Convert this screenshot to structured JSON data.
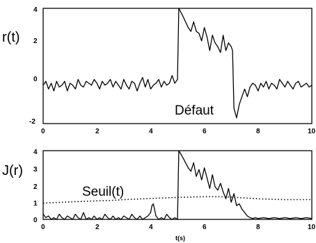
{
  "chart_data": [
    {
      "type": "line",
      "ylabel": "r(t)",
      "xlim": [
        0,
        10
      ],
      "ylim": [
        -2,
        4
      ],
      "x_ticks": [
        "0",
        "2",
        "4",
        "6",
        "8",
        "10"
      ],
      "y_ticks": [
        "-2",
        "0",
        "2",
        "4"
      ],
      "annotations": [
        "Défaut"
      ],
      "series": [
        {
          "style": "solid",
          "x": [
            0,
            0.1,
            0.2,
            0.3,
            0.4,
            0.5,
            0.6,
            0.7,
            0.8,
            0.9,
            1.0,
            1.1,
            1.2,
            1.3,
            1.4,
            1.5,
            1.6,
            1.7,
            1.8,
            1.9,
            2.0,
            2.1,
            2.2,
            2.3,
            2.4,
            2.5,
            2.6,
            2.7,
            2.8,
            2.9,
            3.0,
            3.1,
            3.2,
            3.3,
            3.4,
            3.5,
            3.6,
            3.7,
            3.8,
            3.9,
            4.0,
            4.1,
            4.2,
            4.3,
            4.4,
            4.5,
            4.6,
            4.7,
            4.8,
            4.9,
            5.0,
            5.05,
            5.2,
            5.4,
            5.5,
            5.6,
            5.7,
            5.8,
            5.9,
            6.0,
            6.1,
            6.2,
            6.3,
            6.4,
            6.5,
            6.6,
            6.7,
            6.8,
            6.9,
            7.0,
            7.05,
            7.1,
            7.2,
            7.3,
            7.4,
            7.5,
            7.6,
            7.7,
            7.8,
            7.9,
            8.0,
            8.1,
            8.2,
            8.3,
            8.4,
            8.5,
            8.6,
            8.7,
            8.8,
            8.9,
            9.0,
            9.1,
            9.2,
            9.3,
            9.4,
            9.5,
            9.6,
            9.7,
            9.8,
            9.9,
            10.0
          ],
          "y": [
            0.0,
            0.2,
            -0.2,
            0.1,
            -0.3,
            0.2,
            -0.1,
            0.0,
            0.2,
            -0.3,
            0.1,
            0.0,
            -0.2,
            0.3,
            0.0,
            -0.1,
            0.2,
            0.1,
            0.0,
            0.3,
            0.1,
            -0.2,
            0.2,
            0.0,
            0.1,
            0.3,
            -0.1,
            0.2,
            0.0,
            -0.2,
            0.3,
            0.0,
            -0.2,
            0.2,
            0.1,
            -0.3,
            0.1,
            0.4,
            -0.1,
            0.3,
            -0.2,
            0.0,
            0.1,
            0.3,
            -0.1,
            0.2,
            0.0,
            0.1,
            0.5,
            0.1,
            0.3,
            4.0,
            3.6,
            3.0,
            2.8,
            3.3,
            2.8,
            2.7,
            2.3,
            3.0,
            2.5,
            1.8,
            2.6,
            2.2,
            2.0,
            1.7,
            2.6,
            1.8,
            2.2,
            2.0,
            1.8,
            -1.2,
            -1.7,
            -1.0,
            -0.6,
            -0.2,
            -0.6,
            -0.1,
            0.1,
            0.0,
            -0.3,
            0.1,
            -0.1,
            0.2,
            -0.2,
            0.1,
            0.0,
            -0.2,
            0.3,
            0.1,
            -0.1,
            0.2,
            0.0,
            -0.2,
            0.1,
            0.2,
            -0.1,
            0.0,
            0.1,
            -0.1,
            0.0
          ]
        }
      ]
    },
    {
      "type": "line",
      "ylabel": "J(r)",
      "xlabel": "t(s)",
      "xlim": [
        0,
        10
      ],
      "ylim": [
        0,
        4
      ],
      "x_ticks": [
        "0",
        "2",
        "4",
        "6",
        "8",
        "10"
      ],
      "y_ticks": [
        "0",
        "1",
        "2",
        "3",
        "4"
      ],
      "annotations": [
        "Seuil(t)"
      ],
      "series": [
        {
          "style": "solid",
          "x": [
            0,
            0.1,
            0.2,
            0.3,
            0.4,
            0.5,
            0.6,
            0.7,
            0.8,
            0.9,
            1.0,
            1.1,
            1.2,
            1.3,
            1.4,
            1.5,
            1.6,
            1.7,
            1.8,
            1.9,
            2.0,
            2.1,
            2.2,
            2.3,
            2.4,
            2.5,
            2.6,
            2.7,
            2.8,
            2.9,
            3.0,
            3.1,
            3.2,
            3.3,
            3.4,
            3.5,
            3.6,
            3.7,
            3.8,
            3.9,
            4.0,
            4.05,
            4.1,
            4.2,
            4.3,
            4.4,
            4.5,
            4.6,
            4.7,
            4.8,
            4.9,
            5.0,
            5.05,
            5.2,
            5.4,
            5.5,
            5.6,
            5.7,
            5.8,
            5.9,
            6.0,
            6.1,
            6.2,
            6.3,
            6.4,
            6.5,
            6.6,
            6.7,
            6.8,
            6.9,
            7.0,
            7.1,
            7.2,
            7.3,
            7.4,
            7.5,
            7.6,
            7.7,
            7.8,
            7.9,
            8.0,
            8.2,
            8.4,
            8.6,
            8.8,
            9.0,
            9.2,
            9.4,
            9.6,
            9.8,
            10.0
          ],
          "y": [
            0.3,
            0.1,
            0.2,
            0.0,
            0.1,
            0.0,
            0.3,
            0.1,
            0.0,
            0.2,
            0.1,
            0.0,
            0.3,
            0.1,
            0.0,
            0.4,
            0.0,
            0.1,
            0.0,
            0.2,
            0.0,
            0.1,
            0.0,
            0.3,
            0.1,
            0.0,
            0.2,
            0.0,
            0.1,
            0.0,
            0.2,
            0.1,
            0.0,
            0.3,
            0.1,
            0.0,
            0.2,
            0.0,
            0.1,
            0.2,
            0.4,
            0.8,
            0.9,
            0.2,
            0.0,
            0.1,
            0.0,
            0.3,
            0.1,
            0.0,
            0.1,
            0.0,
            4.0,
            3.6,
            3.0,
            2.8,
            3.3,
            2.5,
            2.9,
            2.3,
            3.0,
            2.4,
            1.8,
            2.6,
            1.9,
            1.7,
            2.1,
            1.6,
            1.2,
            1.8,
            1.0,
            1.5,
            0.8,
            0.9,
            0.6,
            0.4,
            0.2,
            0.1,
            0.05,
            0.1,
            0.05,
            0.1,
            0.05,
            0.1,
            0.05,
            0.1,
            0.05,
            0.1,
            0.05,
            0.1,
            0.05
          ]
        },
        {
          "style": "dotted",
          "x": [
            0,
            0.5,
            1,
            1.5,
            2,
            2.5,
            3,
            3.5,
            4,
            4.5,
            5,
            5.5,
            6,
            6.5,
            7,
            7.5,
            8,
            8.5,
            9,
            9.5,
            10
          ],
          "y": [
            0.95,
            0.98,
            1.02,
            1.05,
            1.08,
            1.1,
            1.15,
            1.18,
            1.22,
            1.25,
            1.28,
            1.3,
            1.32,
            1.32,
            1.3,
            1.25,
            1.2,
            1.17,
            1.15,
            1.15,
            1.15
          ]
        }
      ]
    }
  ]
}
